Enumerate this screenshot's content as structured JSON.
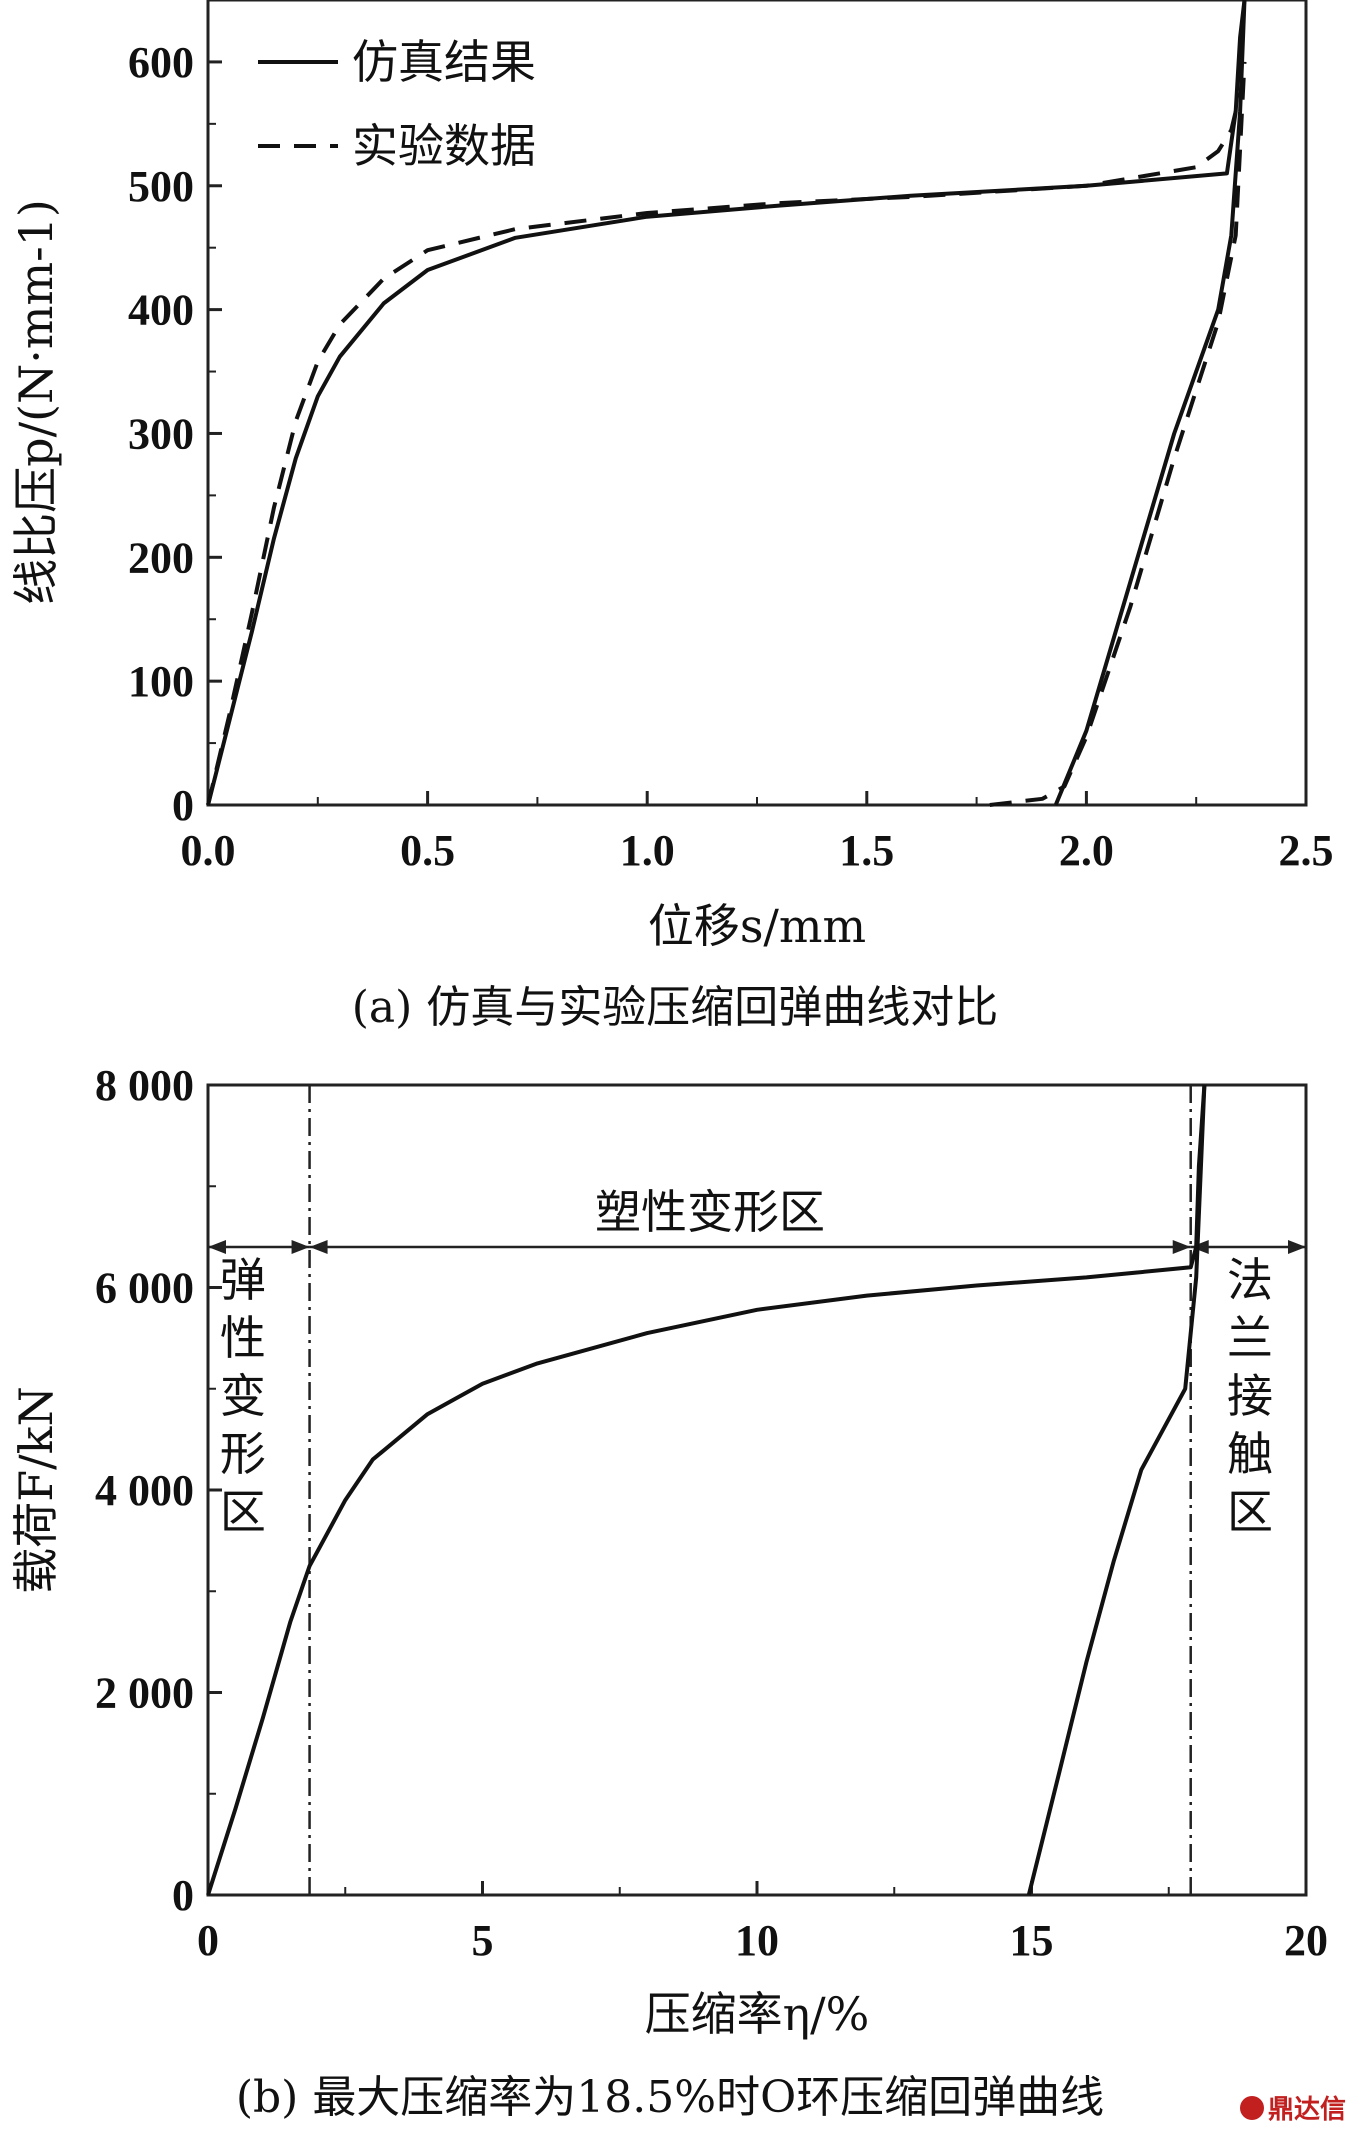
{
  "chart_data": [
    {
      "type": "line",
      "caption": "(a) 仿真与实验压缩回弹曲线对比",
      "xlabel": "位移s/mm",
      "ylabel": "线比压p/(N·mm-1)",
      "xlim": [
        0,
        2.5
      ],
      "ylim": [
        0,
        650
      ],
      "xticks": [
        "0.0",
        "0.5",
        "1.0",
        "1.5",
        "2.0",
        "2.5"
      ],
      "yticks": [
        "0",
        "100",
        "200",
        "300",
        "400",
        "500",
        "600"
      ],
      "legend_position": "top-left",
      "series": [
        {
          "name": "仿真结果",
          "style": "solid",
          "x": [
            0,
            0.05,
            0.1,
            0.15,
            0.2,
            0.25,
            0.3,
            0.4,
            0.5,
            0.7,
            1.0,
            1.3,
            1.6,
            2.0,
            2.32,
            2.34,
            2.35,
            2.36
          ],
          "y": [
            0,
            70,
            140,
            215,
            280,
            330,
            362,
            405,
            432,
            458,
            475,
            484,
            492,
            500,
            510,
            560,
            620,
            650
          ],
          "unloading": {
            "x": [
              1.93,
              2.0,
              2.1,
              2.2,
              2.3,
              2.33,
              2.35,
              2.36
            ],
            "y": [
              0,
              60,
              180,
              300,
              400,
              460,
              560,
              650
            ]
          }
        },
        {
          "name": "实验数据",
          "style": "dashed",
          "x": [
            0,
            0.05,
            0.1,
            0.15,
            0.2,
            0.25,
            0.3,
            0.4,
            0.5,
            0.7,
            1.0,
            1.3,
            1.6,
            2.0,
            2.25,
            2.3,
            2.33,
            2.35
          ],
          "y": [
            0,
            75,
            155,
            240,
            310,
            358,
            388,
            425,
            448,
            465,
            478,
            486,
            491,
            500,
            515,
            528,
            545,
            575
          ],
          "unloading": {
            "x": [
              1.78,
              1.9,
              1.95,
              2.0,
              2.1,
              2.2,
              2.3,
              2.34,
              2.36
            ],
            "y": [
              0,
              5,
              15,
              55,
              160,
              280,
              390,
              460,
              600
            ]
          }
        }
      ]
    },
    {
      "type": "line",
      "caption": "(b) 最大压缩率为18.5%时O环压缩回弹曲线",
      "xlabel": "压缩率η/%",
      "ylabel": "载荷F/kN",
      "xlim": [
        0,
        20
      ],
      "ylim": [
        0,
        8000
      ],
      "xticks": [
        "0",
        "5",
        "10",
        "15",
        "20"
      ],
      "yticks": [
        "0",
        "2 000",
        "4 000",
        "6 000",
        "8 000"
      ],
      "zone_boundaries_x": [
        1.85,
        17.9
      ],
      "annotations": {
        "elastic": "弹性变形区",
        "plastic": "塑性变形区",
        "flange": "法兰接触区"
      },
      "series": [
        {
          "style": "solid",
          "x": [
            0,
            0.5,
            1.0,
            1.5,
            1.85,
            2.5,
            3.0,
            4.0,
            5.0,
            6.0,
            8.0,
            10.0,
            12.0,
            14.0,
            16.0,
            17.9,
            18.0,
            18.05,
            18.15
          ],
          "y": [
            0,
            850,
            1750,
            2700,
            3250,
            3900,
            4300,
            4750,
            5050,
            5250,
            5550,
            5780,
            5920,
            6020,
            6100,
            6200,
            6400,
            7200,
            8000
          ],
          "unloading": {
            "x": [
              14.95,
              15.5,
              16.0,
              16.5,
              17.0,
              17.5,
              17.8,
              18.0,
              18.15
            ],
            "y": [
              0,
              1200,
              2300,
              3300,
              4200,
              4700,
              5000,
              6100,
              8000
            ]
          }
        }
      ]
    }
  ],
  "watermark": "鼎达信",
  "colors": {
    "line": "#111111",
    "watermark": "#c21f1f"
  }
}
